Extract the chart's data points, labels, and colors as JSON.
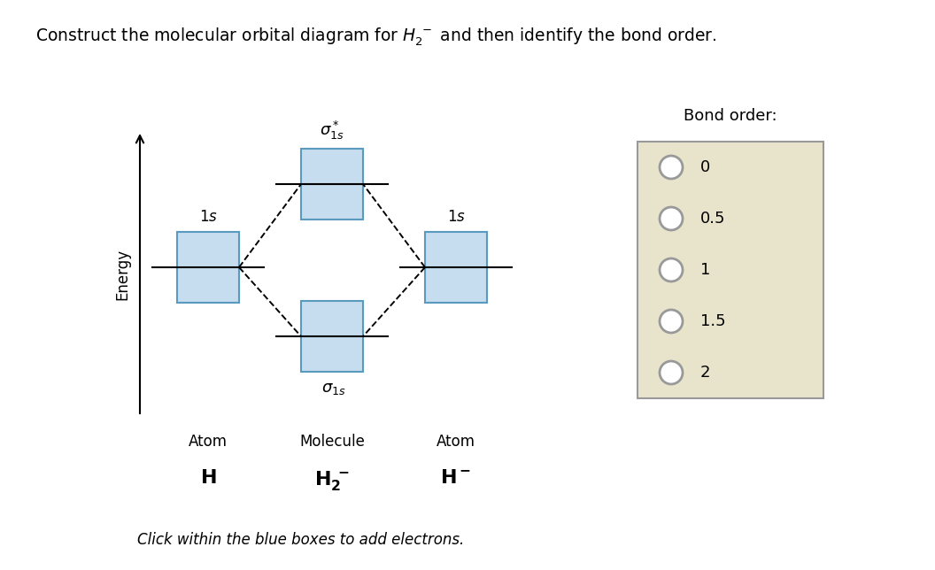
{
  "background_color": "#ffffff",
  "box_face_color": "#c5ddef",
  "box_edge_color": "#5a9abf",
  "bond_order_bg": "#e8e4cc",
  "bond_order_border": "#999999",
  "bond_order_label": "Bond order:",
  "bond_order_options": [
    "0",
    "0.5",
    "1",
    "1.5",
    "2"
  ],
  "energy_label": "Energy",
  "footnote": "Click within the blue boxes to add electrons.",
  "left_atom_label": "1s",
  "right_atom_label": "1s",
  "atom_left_label": "Atom",
  "molecule_label": "Molecule",
  "atom_right_label": "Atom"
}
